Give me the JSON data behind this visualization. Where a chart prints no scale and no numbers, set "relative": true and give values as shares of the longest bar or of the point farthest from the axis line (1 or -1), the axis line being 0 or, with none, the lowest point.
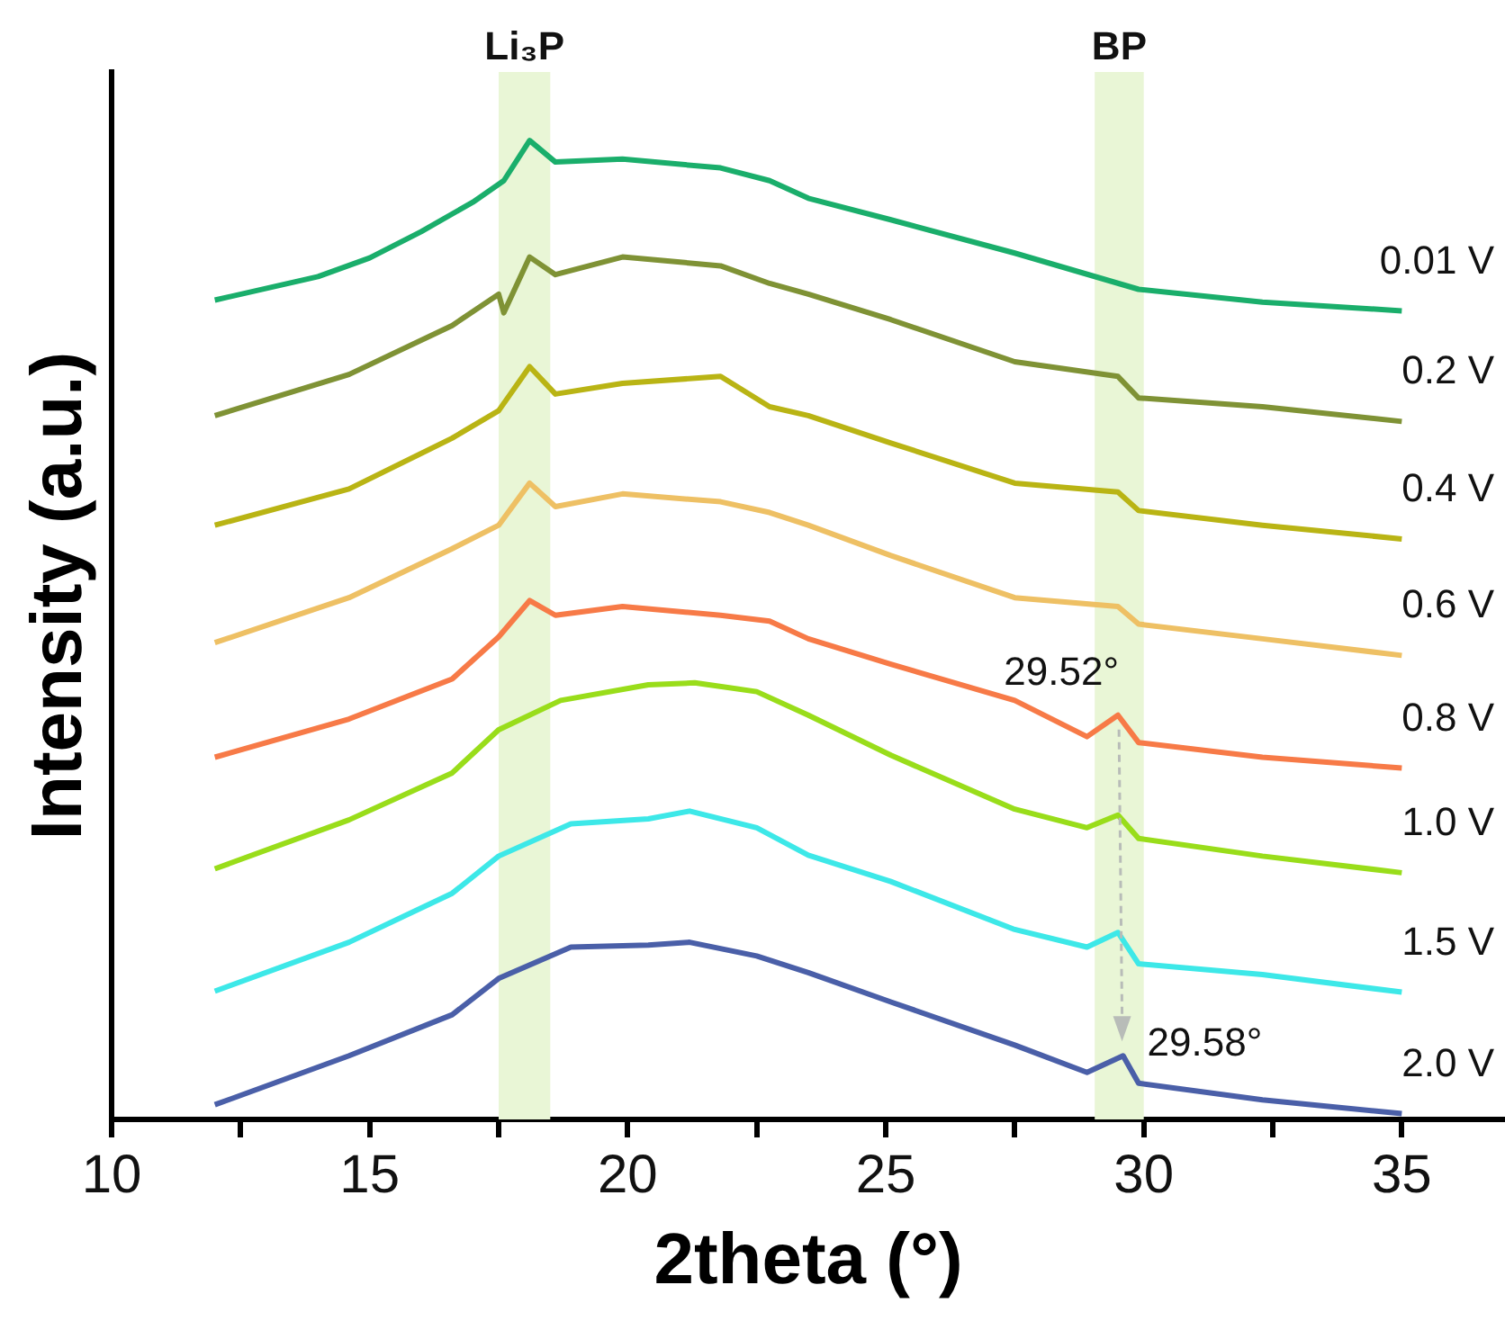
{
  "chart_data": {
    "type": "line",
    "relative": true,
    "xlabel": "2theta (°)",
    "ylabel": "Intensity (a.u.)",
    "xlim": [
      10,
      37
    ],
    "xticks": [
      10,
      {
        "value": 12.5,
        "label": null
      },
      15,
      {
        "value": 17.5,
        "label": null
      },
      20,
      {
        "value": 22.5,
        "label": null
      },
      25,
      {
        "value": 27.5,
        "label": null
      },
      30,
      {
        "value": 32.5,
        "label": null
      },
      35
    ],
    "grid": false,
    "legend": false,
    "marker": "none",
    "line_style": "solid",
    "bands": [
      {
        "axis": "x",
        "from": 17.5,
        "to": 18.5,
        "label": "Li₃P",
        "color": "#e9f6d6"
      },
      {
        "axis": "x",
        "from": 29.05,
        "to": 30.0,
        "label": "BP",
        "color": "#e9f6d6"
      }
    ],
    "annotations": [
      {
        "text": "29.52°",
        "x": 29.52,
        "y": 0.413
      },
      {
        "text": "29.58°",
        "x": 29.58,
        "y": 0.065
      }
    ],
    "series": [
      {
        "name": "0.01 V",
        "color": "#1aae6b",
        "x": [
          12,
          14,
          15,
          16,
          17,
          17.6,
          18.1,
          18.6,
          19.9,
          21.8,
          22.75,
          23.5,
          25.1,
          27.5,
          29.9,
          32.3,
          35
        ],
        "values": [
          0.837,
          0.861,
          0.88,
          0.907,
          0.937,
          0.959,
          1.0,
          0.978,
          0.981,
          0.972,
          0.959,
          0.941,
          0.919,
          0.885,
          0.848,
          0.835,
          0.826
        ]
      },
      {
        "name": "0.2 V",
        "color": "#7f9235",
        "x": [
          12,
          14.6,
          16.6,
          17.5,
          17.6,
          18.1,
          18.6,
          19.9,
          21.8,
          22.75,
          23.5,
          25.1,
          27.5,
          29.5,
          29.9,
          32.3,
          35
        ],
        "values": [
          0.719,
          0.761,
          0.811,
          0.843,
          0.824,
          0.881,
          0.863,
          0.881,
          0.872,
          0.854,
          0.843,
          0.817,
          0.774,
          0.759,
          0.737,
          0.728,
          0.713
        ]
      },
      {
        "name": "0.4 V",
        "color": "#b9b414",
        "x": [
          12,
          14.6,
          16.6,
          17.5,
          18.1,
          18.6,
          19.9,
          21.8,
          22.75,
          23.5,
          25.1,
          27.5,
          29.5,
          29.9,
          32.3,
          35
        ],
        "values": [
          0.607,
          0.644,
          0.696,
          0.724,
          0.769,
          0.741,
          0.752,
          0.759,
          0.728,
          0.719,
          0.691,
          0.65,
          0.641,
          0.622,
          0.607,
          0.593
        ]
      },
      {
        "name": "0.6 V",
        "color": "#eec064",
        "x": [
          12,
          14.6,
          16.6,
          17.5,
          18.1,
          18.6,
          19.9,
          21.8,
          22.75,
          23.5,
          25.1,
          27.5,
          29.5,
          29.9,
          32.3,
          35
        ],
        "values": [
          0.487,
          0.533,
          0.583,
          0.607,
          0.65,
          0.626,
          0.639,
          0.631,
          0.62,
          0.607,
          0.576,
          0.533,
          0.524,
          0.506,
          0.491,
          0.474
        ]
      },
      {
        "name": "0.8 V",
        "color": "#f77a47",
        "x": [
          12,
          14.6,
          16.6,
          17.5,
          18.1,
          18.6,
          19.9,
          21.8,
          22.75,
          23.5,
          25.1,
          27.5,
          28.9,
          29.5,
          29.9,
          32.3,
          35
        ],
        "values": [
          0.37,
          0.409,
          0.45,
          0.493,
          0.53,
          0.515,
          0.524,
          0.515,
          0.509,
          0.491,
          0.465,
          0.428,
          0.391,
          0.413,
          0.385,
          0.37,
          0.359
        ]
      },
      {
        "name": "1.0 V",
        "color": "#99dd1a",
        "x": [
          12,
          14.6,
          16.6,
          17.5,
          18.7,
          20.4,
          21.3,
          22.5,
          23.5,
          25.1,
          27.5,
          28.9,
          29.5,
          29.9,
          32.3,
          35
        ],
        "values": [
          0.256,
          0.306,
          0.354,
          0.398,
          0.428,
          0.444,
          0.446,
          0.437,
          0.413,
          0.372,
          0.317,
          0.298,
          0.311,
          0.287,
          0.269,
          0.252
        ]
      },
      {
        "name": "1.5 V",
        "color": "#3de8e8",
        "x": [
          12,
          14.6,
          16.6,
          17.5,
          18.9,
          20.4,
          21.2,
          22.5,
          23.5,
          25.1,
          27.5,
          28.9,
          29.5,
          29.9,
          32.3,
          35
        ],
        "values": [
          0.131,
          0.181,
          0.231,
          0.269,
          0.302,
          0.307,
          0.315,
          0.298,
          0.27,
          0.243,
          0.194,
          0.176,
          0.191,
          0.159,
          0.148,
          0.13
        ]
      },
      {
        "name": "2.0 V",
        "color": "#4a5fa8",
        "x": [
          12,
          14.6,
          16.6,
          17.5,
          18.9,
          20.4,
          21.2,
          22.5,
          23.5,
          25.1,
          27.5,
          28.9,
          29.6,
          29.9,
          32.3,
          35
        ],
        "values": [
          0.015,
          0.065,
          0.107,
          0.144,
          0.176,
          0.178,
          0.181,
          0.167,
          0.15,
          0.12,
          0.076,
          0.048,
          0.065,
          0.037,
          0.02,
          0.006
        ]
      }
    ]
  }
}
